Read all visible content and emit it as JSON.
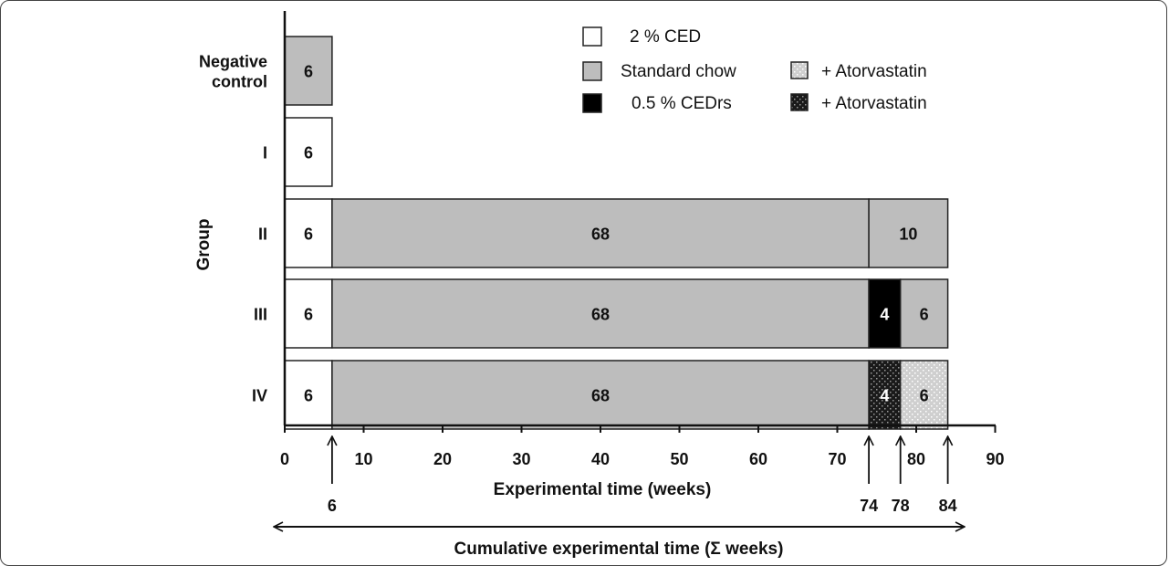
{
  "colors": {
    "ced_2pct": "#ffffff",
    "standard_chow": "#bdbdbd",
    "cedrs_05pct": "#000000",
    "chow_atorvastatin": "#cfcfcf",
    "cedrs_atorvastatin": "#1a1a1a",
    "outline": "#222222"
  },
  "chart_data": {
    "type": "bar",
    "orientation": "horizontal-stacked",
    "xlabel": "Experimental time (weeks)",
    "ylabel": "Group",
    "xlim": [
      0,
      90
    ],
    "xticks": [
      0,
      10,
      20,
      30,
      40,
      50,
      60,
      70,
      80,
      90
    ],
    "categories": [
      "Negative control",
      "I",
      "II",
      "III",
      "IV"
    ],
    "groups": [
      {
        "label_lines": [
          "Negative",
          "control"
        ],
        "segments": [
          {
            "diet": "Standard chow",
            "start": 0,
            "weeks": 6
          }
        ]
      },
      {
        "label_lines": [
          "I"
        ],
        "segments": [
          {
            "diet": "2 % CED",
            "start": 0,
            "weeks": 6
          }
        ]
      },
      {
        "label_lines": [
          "II"
        ],
        "segments": [
          {
            "diet": "2 % CED",
            "start": 0,
            "weeks": 6
          },
          {
            "diet": "Standard chow",
            "start": 6,
            "weeks": 68
          },
          {
            "diet": "Standard chow",
            "start": 74,
            "weeks": 10
          }
        ]
      },
      {
        "label_lines": [
          "III"
        ],
        "segments": [
          {
            "diet": "2 % CED",
            "start": 0,
            "weeks": 6
          },
          {
            "diet": "Standard chow",
            "start": 6,
            "weeks": 68
          },
          {
            "diet": "0.5 % CEDrs",
            "start": 74,
            "weeks": 4
          },
          {
            "diet": "Standard chow",
            "start": 78,
            "weeks": 6
          }
        ]
      },
      {
        "label_lines": [
          "IV"
        ],
        "segments": [
          {
            "diet": "2 % CED",
            "start": 0,
            "weeks": 6
          },
          {
            "diet": "Standard chow",
            "start": 6,
            "weeks": 68
          },
          {
            "diet": "0.5 % CEDrs + Atorvastatin",
            "start": 74,
            "weeks": 4
          },
          {
            "diet": "Standard chow + Atorvastatin",
            "start": 78,
            "weeks": 6
          }
        ]
      }
    ],
    "legend": {
      "placement": "top-center",
      "items": [
        {
          "key": "ced_2pct",
          "label": "2 % CED"
        },
        {
          "key": "standard_chow",
          "label": "Standard chow"
        },
        {
          "key": "cedrs_05pct",
          "label": "0.5 % CEDrs"
        },
        {
          "key": "chow_atorvastatin",
          "label": "+ Atorvastatin"
        },
        {
          "key": "cedrs_atorvastatin",
          "label": "+ Atorvastatin"
        }
      ]
    },
    "time_markers": [
      6,
      74,
      78,
      84
    ],
    "cumulative_label": "Cumulative experimental time (Σ weeks)",
    "grid": false
  }
}
